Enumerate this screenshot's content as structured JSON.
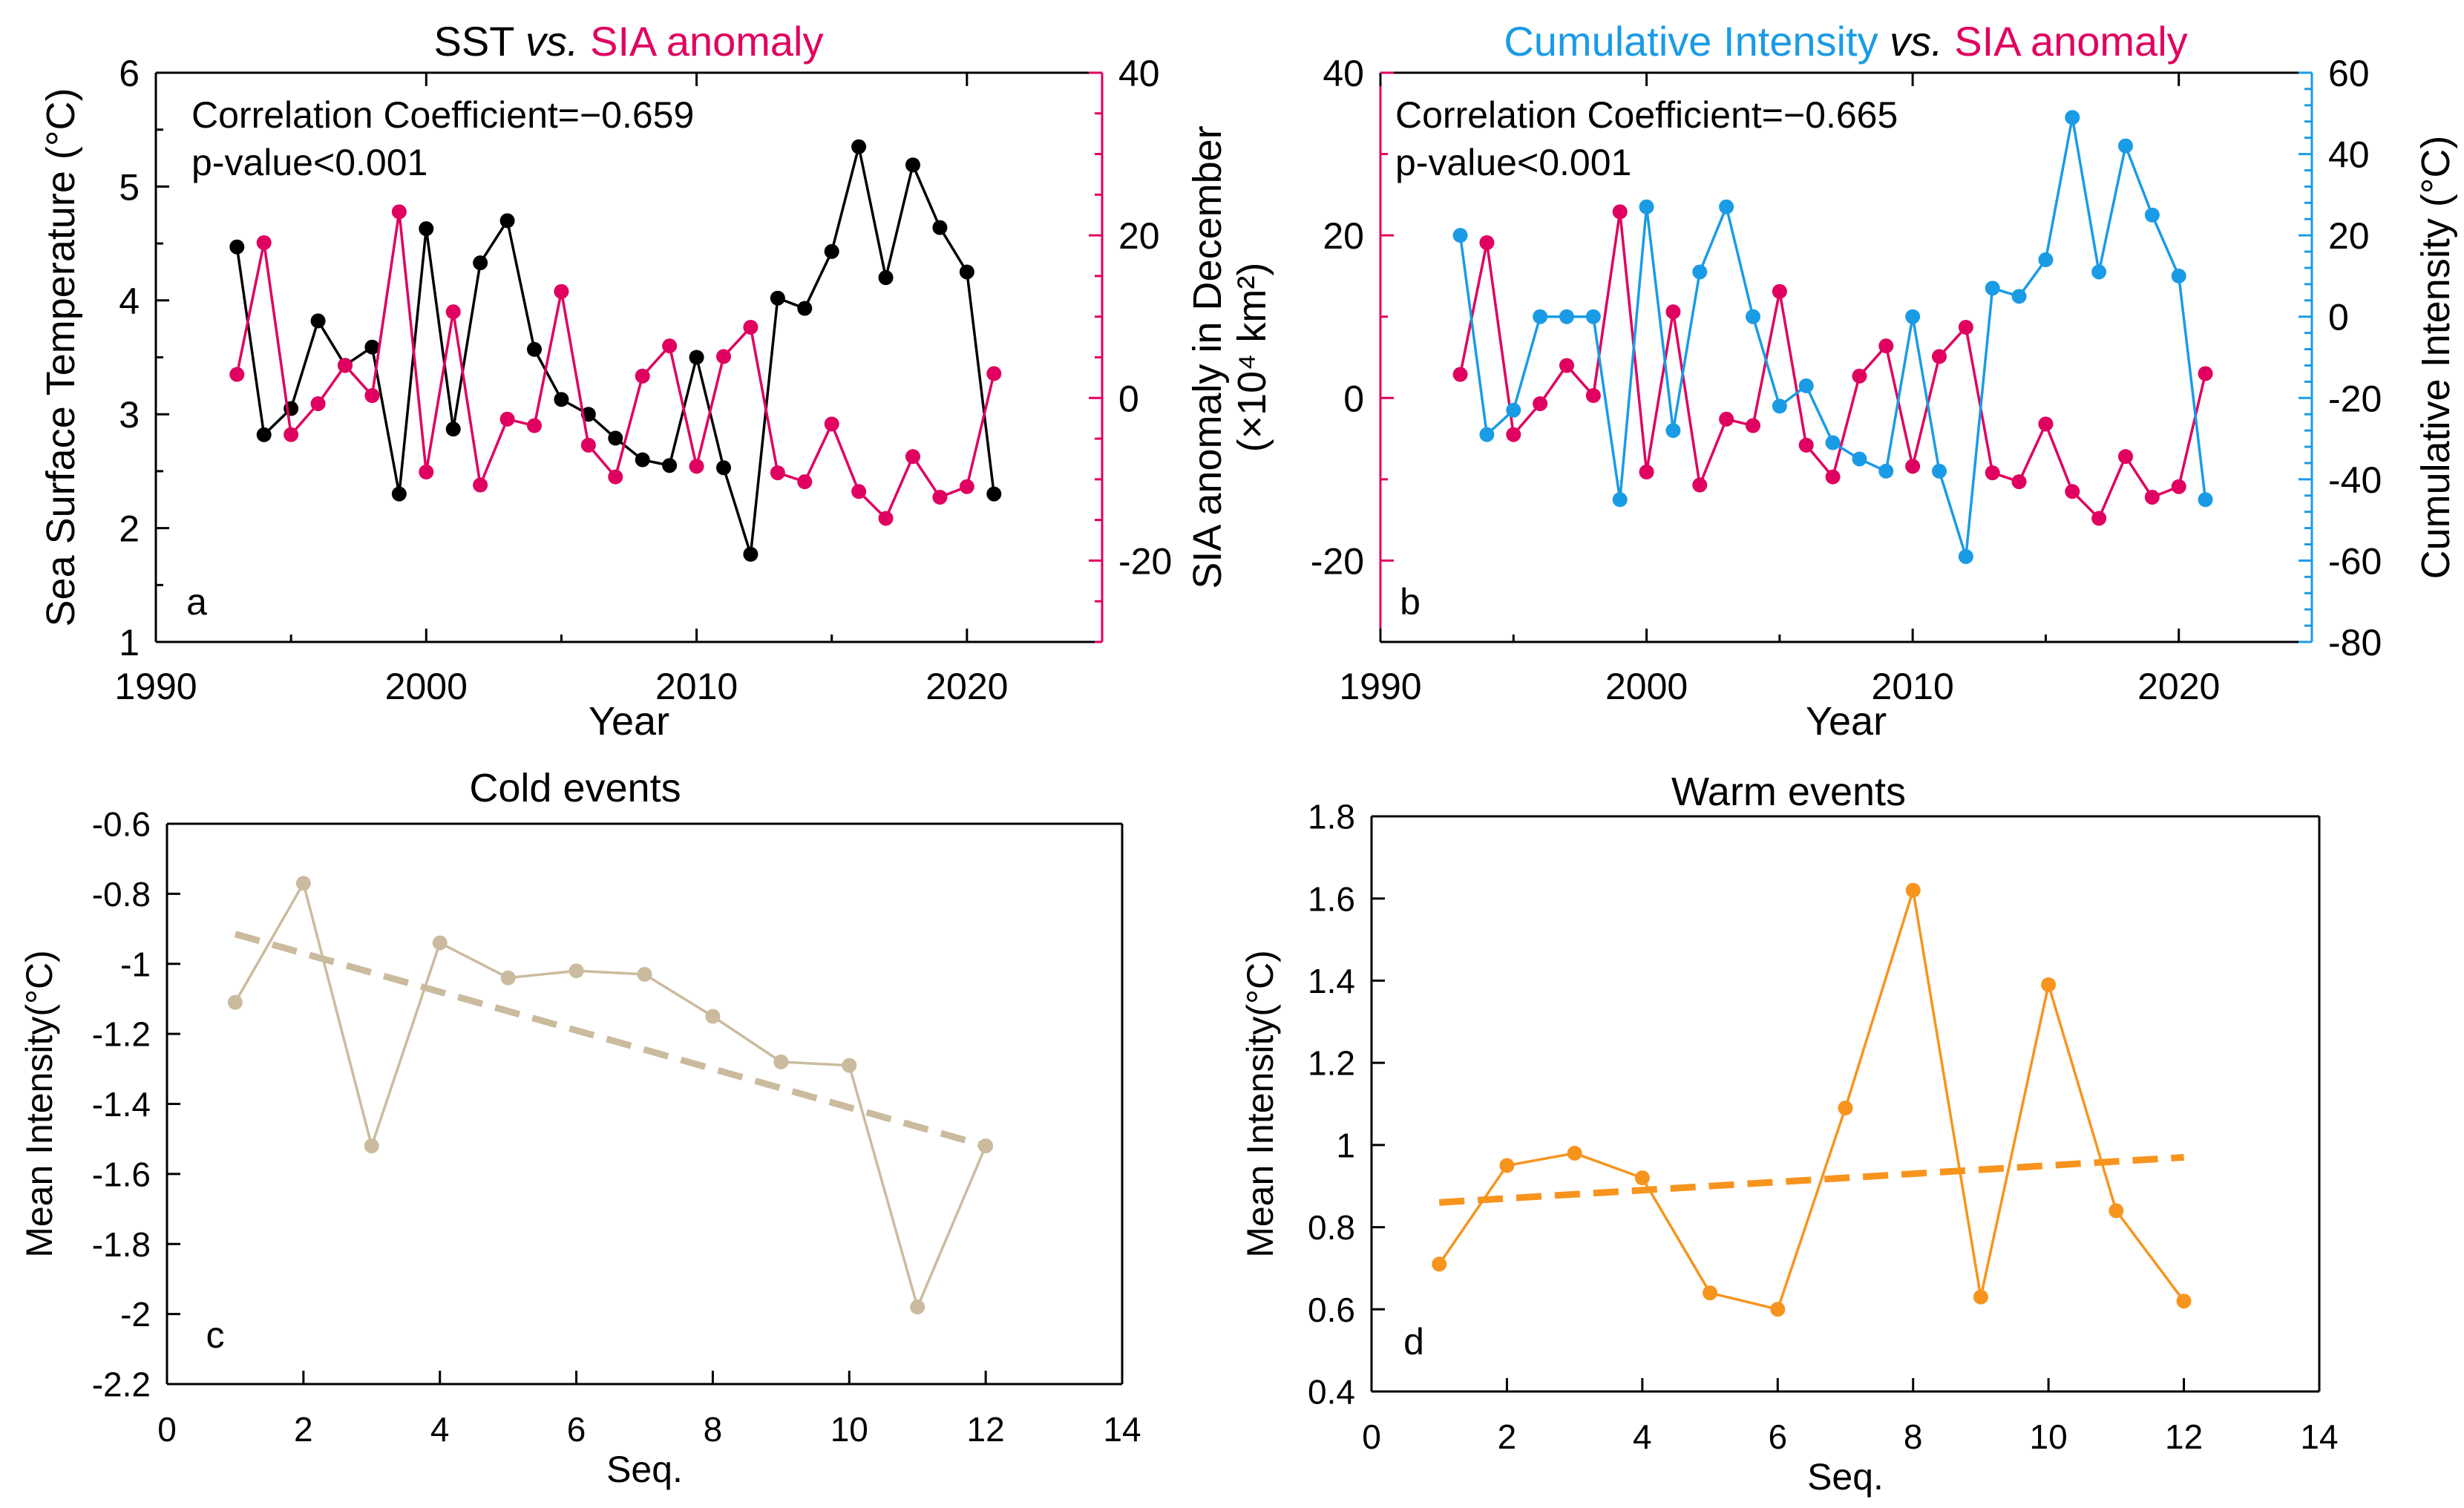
{
  "colors": {
    "sst": "#000000",
    "sia": "#e0005f",
    "ci": "#1a9be6",
    "cold": "#cbbb9e",
    "warm": "#f7941d",
    "frame": "#000000"
  },
  "chart_data": [
    {
      "id": "a",
      "type": "line",
      "panel_label": "a",
      "title_parts": [
        {
          "text": "SST ",
          "style": "normal",
          "color": "sst"
        },
        {
          "text": "vs.",
          "style": "italic",
          "color": "sst"
        },
        {
          "text": " SIA anomaly",
          "style": "normal",
          "color": "sia"
        }
      ],
      "xlabel": "Year",
      "xlim": [
        1990,
        2025
      ],
      "xticks": [
        1990,
        2000,
        2010,
        2020
      ],
      "ylabel_left": "Sea Surface Temperature (°C)",
      "ylim_left": [
        1,
        6
      ],
      "yticks_left": [
        1,
        2,
        3,
        4,
        5,
        6
      ],
      "ylabel_right_lines": [
        "SIA anomaly in December",
        "(×10⁴ km²)"
      ],
      "ylim_right": [
        -30,
        40
      ],
      "yticks_right": [
        -20,
        0,
        20,
        40
      ],
      "annotation": [
        "Correlation Coefficient=−0.659",
        "p-value<0.001"
      ],
      "x": [
        1993,
        1994,
        1995,
        1996,
        1997,
        1998,
        1999,
        2000,
        2001,
        2002,
        2003,
        2004,
        2005,
        2006,
        2007,
        2008,
        2009,
        2010,
        2011,
        2012,
        2013,
        2014,
        2015,
        2016,
        2017,
        2018,
        2019,
        2020,
        2021
      ],
      "series": [
        {
          "name": "SST",
          "axis": "left",
          "color": "sst",
          "values": [
            4.47,
            2.82,
            3.05,
            3.82,
            3.43,
            3.59,
            2.3,
            4.63,
            2.87,
            4.33,
            4.7,
            3.57,
            3.13,
            3.0,
            2.79,
            2.6,
            2.55,
            3.5,
            2.53,
            1.77,
            4.02,
            3.93,
            4.43,
            5.35,
            4.2,
            5.19,
            4.64,
            4.25,
            2.3
          ]
        },
        {
          "name": "SIA anomaly",
          "axis": "right",
          "color": "sia",
          "values": [
            2.9,
            19.1,
            -4.5,
            -0.7,
            4,
            0.3,
            22.9,
            -9.1,
            10.6,
            -10.7,
            -2.6,
            -3.4,
            13.1,
            -5.8,
            -9.7,
            2.7,
            6.4,
            -8.4,
            5.1,
            8.7,
            -9.2,
            -10.3,
            -3.2,
            -11.5,
            -14.8,
            -7.2,
            -12.2,
            -10.9,
            3
          ]
        }
      ]
    },
    {
      "id": "b",
      "type": "line",
      "panel_label": "b",
      "title_parts": [
        {
          "text": "Cumulative Intensity ",
          "style": "normal",
          "color": "ci"
        },
        {
          "text": "vs.",
          "style": "italic",
          "color": "sst"
        },
        {
          "text": " SIA anomaly",
          "style": "normal",
          "color": "sia"
        }
      ],
      "xlabel": "Year",
      "xlim": [
        1990,
        2025
      ],
      "xticks": [
        1990,
        2000,
        2010,
        2020
      ],
      "ylabel_left": "",
      "ylim_left": [
        -30,
        40
      ],
      "yticks_left": [
        -20,
        0,
        20,
        40
      ],
      "ylabel_right_lines": [
        "Cumulative Intensity (°C)"
      ],
      "ylim_right": [
        -80,
        60
      ],
      "yticks_right": [
        -80,
        -60,
        -40,
        -20,
        0,
        20,
        40,
        60
      ],
      "annotation": [
        "Correlation Coefficient=−0.665",
        "p-value<0.001"
      ],
      "x": [
        1993,
        1994,
        1995,
        1996,
        1997,
        1998,
        1999,
        2000,
        2001,
        2002,
        2003,
        2004,
        2005,
        2006,
        2007,
        2008,
        2009,
        2010,
        2011,
        2012,
        2013,
        2014,
        2015,
        2016,
        2017,
        2018,
        2019,
        2020,
        2021
      ],
      "series": [
        {
          "name": "SIA anomaly",
          "axis": "left",
          "color": "sia",
          "values": [
            2.9,
            19.1,
            -4.5,
            -0.7,
            4,
            0.3,
            22.9,
            -9.1,
            10.6,
            -10.7,
            -2.6,
            -3.4,
            13.1,
            -5.8,
            -9.7,
            2.7,
            6.4,
            -8.4,
            5.1,
            8.7,
            -9.2,
            -10.3,
            -3.2,
            -11.5,
            -14.8,
            -7.2,
            -12.2,
            -10.9,
            3
          ]
        },
        {
          "name": "Cumulative Intensity",
          "axis": "right",
          "color": "ci",
          "values": [
            20,
            -29,
            -23,
            0,
            0,
            0,
            -45,
            27,
            -28,
            11,
            27,
            0,
            -22,
            -17,
            -31,
            -35,
            -38,
            0,
            -38,
            -59,
            7,
            5,
            14,
            49,
            11,
            42,
            25,
            10,
            -45
          ]
        }
      ]
    },
    {
      "id": "c",
      "type": "line",
      "panel_label": "c",
      "title": "Cold events",
      "xlabel": "Seq.",
      "xlim": [
        0,
        14
      ],
      "xticks": [
        0,
        2,
        4,
        6,
        8,
        10,
        12,
        14
      ],
      "ylabel_left": "Mean Intensity(°C)",
      "ylim_left": [
        -2.2,
        -0.6
      ],
      "yticks_left": [
        -2.2,
        -2,
        -1.8,
        -1.6,
        -1.4,
        -1.2,
        -1,
        -0.8,
        -0.6
      ],
      "ytick_labels_left": [
        "-2.2",
        "-2",
        "-1.8",
        "-1.6",
        "-1.4",
        "-1.2",
        "-1",
        "-0.8",
        "-0.6"
      ],
      "x": [
        1,
        2,
        3,
        4,
        5,
        6,
        7,
        8,
        9,
        10,
        11,
        12
      ],
      "series": [
        {
          "name": "Cold events",
          "color": "cold",
          "values": [
            -1.11,
            -0.77,
            -1.52,
            -0.94,
            -1.04,
            -1.02,
            -1.03,
            -1.15,
            -1.28,
            -1.29,
            -1.98,
            -1.52
          ]
        }
      ],
      "trend": {
        "x": [
          1,
          12
        ],
        "y": [
          -0.915,
          -1.52
        ],
        "color": "cold"
      }
    },
    {
      "id": "d",
      "type": "line",
      "panel_label": "d",
      "title": "Warm events",
      "xlabel": "Seq.",
      "xlim": [
        0,
        14
      ],
      "xticks": [
        0,
        2,
        4,
        6,
        8,
        10,
        12,
        14
      ],
      "ylabel_left": "Mean Intensity(°C)",
      "ylim_left": [
        0.4,
        1.8
      ],
      "yticks_left": [
        0.4,
        0.6,
        0.8,
        1,
        1.2,
        1.4,
        1.6,
        1.8
      ],
      "ytick_labels_left": [
        "0.4",
        "0.6",
        "0.8",
        "1",
        "1.2",
        "1.4",
        "1.6",
        "1.8"
      ],
      "x": [
        1,
        2,
        3,
        4,
        5,
        6,
        7,
        8,
        9,
        10,
        11,
        12
      ],
      "series": [
        {
          "name": "Warm events",
          "color": "warm",
          "values": [
            0.71,
            0.95,
            0.98,
            0.92,
            0.64,
            0.6,
            1.09,
            1.62,
            0.63,
            1.39,
            0.84,
            0.62
          ]
        }
      ],
      "trend": {
        "x": [
          1,
          12
        ],
        "y": [
          0.86,
          0.97
        ],
        "color": "warm"
      }
    }
  ]
}
